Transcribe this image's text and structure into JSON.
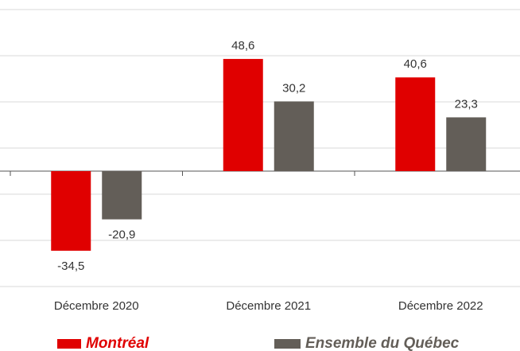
{
  "chart_data": {
    "type": "bar",
    "categories": [
      "Décembre 2020",
      "Décembre 2021",
      "Décembre 2022"
    ],
    "series": [
      {
        "name": "Montréal",
        "color": "#e00000",
        "values": [
          -34.5,
          48.6,
          40.6
        ],
        "value_labels": [
          "-34,5",
          "48,6",
          "40,6"
        ]
      },
      {
        "name": "Ensemble du Québec",
        "color": "#635e58",
        "values": [
          -20.9,
          30.2,
          23.3
        ],
        "value_labels": [
          "-20,9",
          "30,2",
          "23,3"
        ]
      }
    ],
    "ylim": [
      -50,
      70
    ],
    "yticks": [
      70,
      50,
      30,
      10,
      -10,
      -30,
      -50
    ],
    "grid": true
  }
}
